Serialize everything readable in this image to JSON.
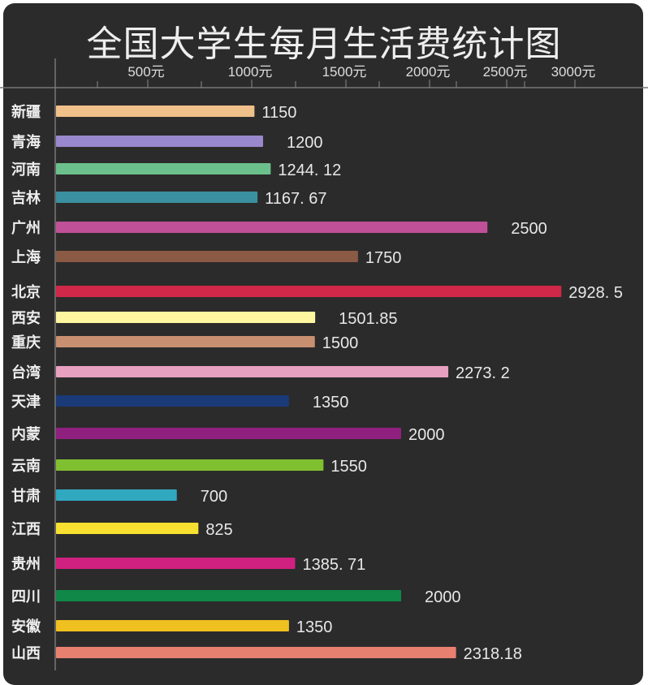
{
  "chart_data": {
    "type": "bar",
    "orientation": "horizontal",
    "title": "全国大学生每月生活费统计图",
    "xlabel": "",
    "ylabel": "",
    "xlim": [
      0,
      3000
    ],
    "x_ticks": [
      "500元",
      "1000元",
      "1500元",
      "2000元",
      "2500元",
      "3000元"
    ],
    "x_tick_values": [
      500,
      1000,
      1500,
      2000,
      2500,
      3000
    ],
    "categories": [
      "新疆",
      "青海",
      "河南",
      "吉林",
      "广州",
      "上海",
      "北京",
      "西安",
      "重庆",
      "台湾",
      "天津",
      "内蒙",
      "云南",
      "甘肃",
      "江西",
      "贵州",
      "四川",
      "安徽",
      "山西"
    ],
    "values": [
      1150,
      1200,
      1244.12,
      1167.67,
      2500,
      1750,
      2928.5,
      1501.85,
      1500,
      2273.2,
      1350,
      2000,
      1550,
      700,
      825,
      1385.71,
      2000,
      1350,
      2318.18
    ],
    "value_labels": [
      "1150",
      "1200",
      "1244. 12",
      "1167. 67",
      "2500",
      "1750",
      "2928. 5",
      "1501.85",
      "1500",
      "2273. 2",
      "1350",
      "2000",
      "1550",
      "700",
      "825",
      "1385. 71",
      "2000",
      "1350",
      "2318.18"
    ],
    "colors": [
      "#f0c08a",
      "#9a88cc",
      "#6cc08c",
      "#3a90a0",
      "#c05098",
      "#8a5a44",
      "#d02848",
      "#fff6a0",
      "#c89070",
      "#e8a0c0",
      "#1a3a78",
      "#902080",
      "#80c030",
      "#30a8c0",
      "#f8e030",
      "#d02080",
      "#108848",
      "#f0c020",
      "#e88070"
    ],
    "grid": false,
    "legend": "none"
  }
}
